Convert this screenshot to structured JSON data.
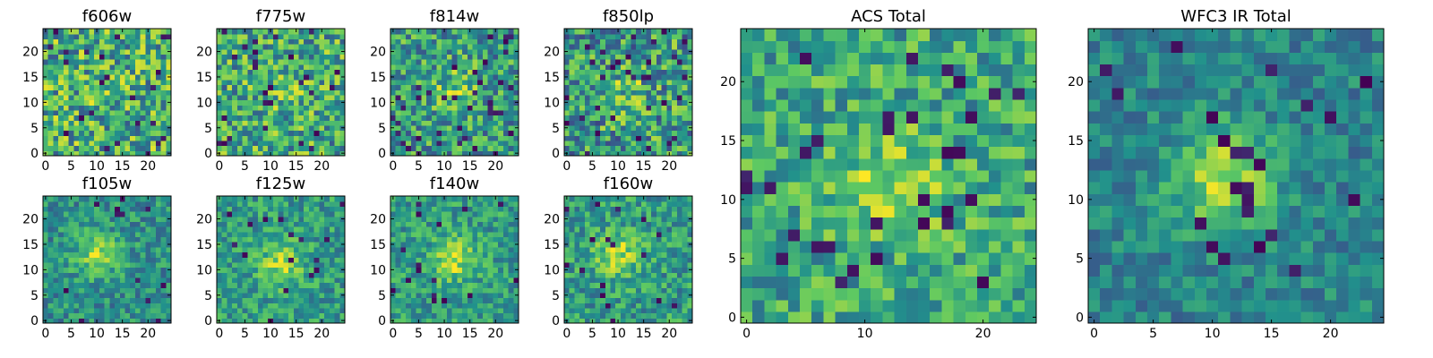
{
  "figure": {
    "panel_count": 10,
    "colormap": "viridis",
    "colormap_stops": [
      "#440154",
      "#3b528b",
      "#21918c",
      "#5ec962",
      "#fde725"
    ]
  },
  "chart_data": [
    {
      "type": "heatmap",
      "title": "f606w",
      "grid": [
        25,
        25
      ],
      "xlim": [
        0,
        24
      ],
      "ylim": [
        0,
        24
      ],
      "xticks": [
        "0",
        "5",
        "10",
        "15",
        "20"
      ],
      "yticks": [
        "0",
        "5",
        "10",
        "15",
        "20"
      ],
      "source_center": [
        12,
        12
      ],
      "source_amplitude": 0.05,
      "noise": 0.34,
      "base": 0.62,
      "dark_pixel_fraction": 0.04
    },
    {
      "type": "heatmap",
      "title": "f775w",
      "grid": [
        25,
        25
      ],
      "xlim": [
        0,
        24
      ],
      "ylim": [
        0,
        24
      ],
      "xticks": [
        "0",
        "5",
        "10",
        "15",
        "20"
      ],
      "yticks": [
        "0",
        "5",
        "10",
        "15",
        "20"
      ],
      "source_center": [
        12,
        12
      ],
      "source_amplitude": 0.12,
      "noise": 0.32,
      "base": 0.6,
      "dark_pixel_fraction": 0.04
    },
    {
      "type": "heatmap",
      "title": "f814w",
      "grid": [
        25,
        25
      ],
      "xlim": [
        0,
        24
      ],
      "ylim": [
        0,
        24
      ],
      "xticks": [
        "0",
        "5",
        "10",
        "15",
        "20"
      ],
      "yticks": [
        "0",
        "5",
        "10",
        "15",
        "20"
      ],
      "source_center": [
        12,
        12
      ],
      "source_amplitude": 0.22,
      "noise": 0.3,
      "base": 0.55,
      "dark_pixel_fraction": 0.05
    },
    {
      "type": "heatmap",
      "title": "f850lp",
      "grid": [
        25,
        25
      ],
      "xlim": [
        0,
        24
      ],
      "ylim": [
        0,
        24
      ],
      "xticks": [
        "0",
        "5",
        "10",
        "15",
        "20"
      ],
      "yticks": [
        "0",
        "5",
        "10",
        "15",
        "20"
      ],
      "source_center": [
        12,
        12
      ],
      "source_amplitude": 0.15,
      "noise": 0.34,
      "base": 0.55,
      "dark_pixel_fraction": 0.06
    },
    {
      "type": "heatmap",
      "title": "f105w",
      "grid": [
        25,
        25
      ],
      "xlim": [
        0,
        24
      ],
      "ylim": [
        0,
        24
      ],
      "xticks": [
        "0",
        "5",
        "10",
        "15",
        "20"
      ],
      "yticks": [
        "0",
        "5",
        "10",
        "15",
        "20"
      ],
      "source_center": [
        10,
        13
      ],
      "source_amplitude": 0.32,
      "noise": 0.2,
      "base": 0.5,
      "dark_pixel_fraction": 0.03
    },
    {
      "type": "heatmap",
      "title": "f125w",
      "grid": [
        25,
        25
      ],
      "xlim": [
        0,
        24
      ],
      "ylim": [
        0,
        24
      ],
      "xticks": [
        "0",
        "5",
        "10",
        "15",
        "20"
      ],
      "yticks": [
        "0",
        "5",
        "10",
        "15",
        "20"
      ],
      "source_center": [
        12,
        11
      ],
      "source_amplitude": 0.3,
      "noise": 0.2,
      "base": 0.55,
      "dark_pixel_fraction": 0.03
    },
    {
      "type": "heatmap",
      "title": "f140w",
      "grid": [
        25,
        25
      ],
      "xlim": [
        0,
        24
      ],
      "ylim": [
        0,
        24
      ],
      "xticks": [
        "0",
        "5",
        "10",
        "15",
        "20"
      ],
      "yticks": [
        "0",
        "5",
        "10",
        "15",
        "20"
      ],
      "source_center": [
        12,
        12
      ],
      "source_amplitude": 0.32,
      "noise": 0.2,
      "base": 0.55,
      "dark_pixel_fraction": 0.03
    },
    {
      "type": "heatmap",
      "title": "f160w",
      "grid": [
        25,
        25
      ],
      "xlim": [
        0,
        24
      ],
      "ylim": [
        0,
        24
      ],
      "xticks": [
        "0",
        "5",
        "10",
        "15",
        "20"
      ],
      "yticks": [
        "0",
        "5",
        "10",
        "15",
        "20"
      ],
      "source_center": [
        10,
        13
      ],
      "source_amplitude": 0.32,
      "noise": 0.22,
      "base": 0.55,
      "dark_pixel_fraction": 0.04
    },
    {
      "type": "heatmap",
      "title": "ACS Total",
      "grid": [
        25,
        25
      ],
      "xlim": [
        0,
        24
      ],
      "ylim": [
        0,
        24
      ],
      "xticks": [
        "0",
        "10",
        "20"
      ],
      "yticks": [
        "0",
        "5",
        "10",
        "15",
        "20"
      ],
      "source_center": [
        12,
        11
      ],
      "source_amplitude": 0.28,
      "noise": 0.24,
      "base": 0.6,
      "dark_pixel_fraction": 0.04
    },
    {
      "type": "heatmap",
      "title": "WFC3 IR Total",
      "grid": [
        25,
        25
      ],
      "xlim": [
        0,
        24
      ],
      "ylim": [
        0,
        24
      ],
      "xticks": [
        "0",
        "5",
        "10",
        "15",
        "20"
      ],
      "yticks": [
        "0",
        "5",
        "10",
        "15",
        "20"
      ],
      "source_center": [
        11,
        12
      ],
      "source_amplitude": 0.45,
      "noise": 0.16,
      "base": 0.45,
      "dark_pixel_fraction": 0.03
    }
  ]
}
